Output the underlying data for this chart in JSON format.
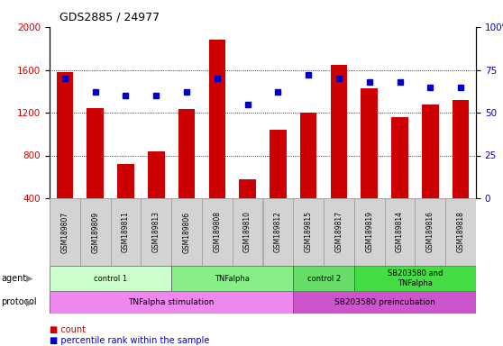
{
  "title": "GDS2885 / 24977",
  "samples": [
    "GSM189807",
    "GSM189809",
    "GSM189811",
    "GSM189813",
    "GSM189806",
    "GSM189808",
    "GSM189810",
    "GSM189812",
    "GSM189815",
    "GSM189817",
    "GSM189819",
    "GSM189814",
    "GSM189816",
    "GSM189818"
  ],
  "counts": [
    1580,
    1240,
    720,
    840,
    1230,
    1880,
    580,
    1040,
    1200,
    1650,
    1430,
    1160,
    1280,
    1320
  ],
  "percentiles": [
    70,
    62,
    60,
    60,
    62,
    70,
    55,
    62,
    72,
    70,
    68,
    68,
    65,
    65
  ],
  "ylim_left": [
    400,
    2000
  ],
  "ylim_right": [
    0,
    100
  ],
  "yticks_left": [
    400,
    800,
    1200,
    1600,
    2000
  ],
  "yticks_right": [
    0,
    25,
    50,
    75,
    100
  ],
  "bar_color": "#cc0000",
  "dot_color": "#0000cc",
  "agent_groups": [
    {
      "label": "control 1",
      "start": 0,
      "end": 4,
      "color": "#ccffcc"
    },
    {
      "label": "TNFalpha",
      "start": 4,
      "end": 8,
      "color": "#88ee88"
    },
    {
      "label": "control 2",
      "start": 8,
      "end": 10,
      "color": "#66dd66"
    },
    {
      "label": "SB203580 and\nTNFalpha",
      "start": 10,
      "end": 14,
      "color": "#44dd44"
    }
  ],
  "protocol_groups": [
    {
      "label": "TNFalpha stimulation",
      "start": 0,
      "end": 8,
      "color": "#ee88ee"
    },
    {
      "label": "SB203580 preincubation",
      "start": 8,
      "end": 14,
      "color": "#cc55cc"
    }
  ],
  "legend_count_color": "#cc0000",
  "legend_dot_color": "#0000cc",
  "background_color": "#ffffff",
  "tick_label_color_left": "#cc0000",
  "tick_label_color_right": "#0000cc",
  "gridline_ticks": [
    800,
    1200,
    1600
  ]
}
